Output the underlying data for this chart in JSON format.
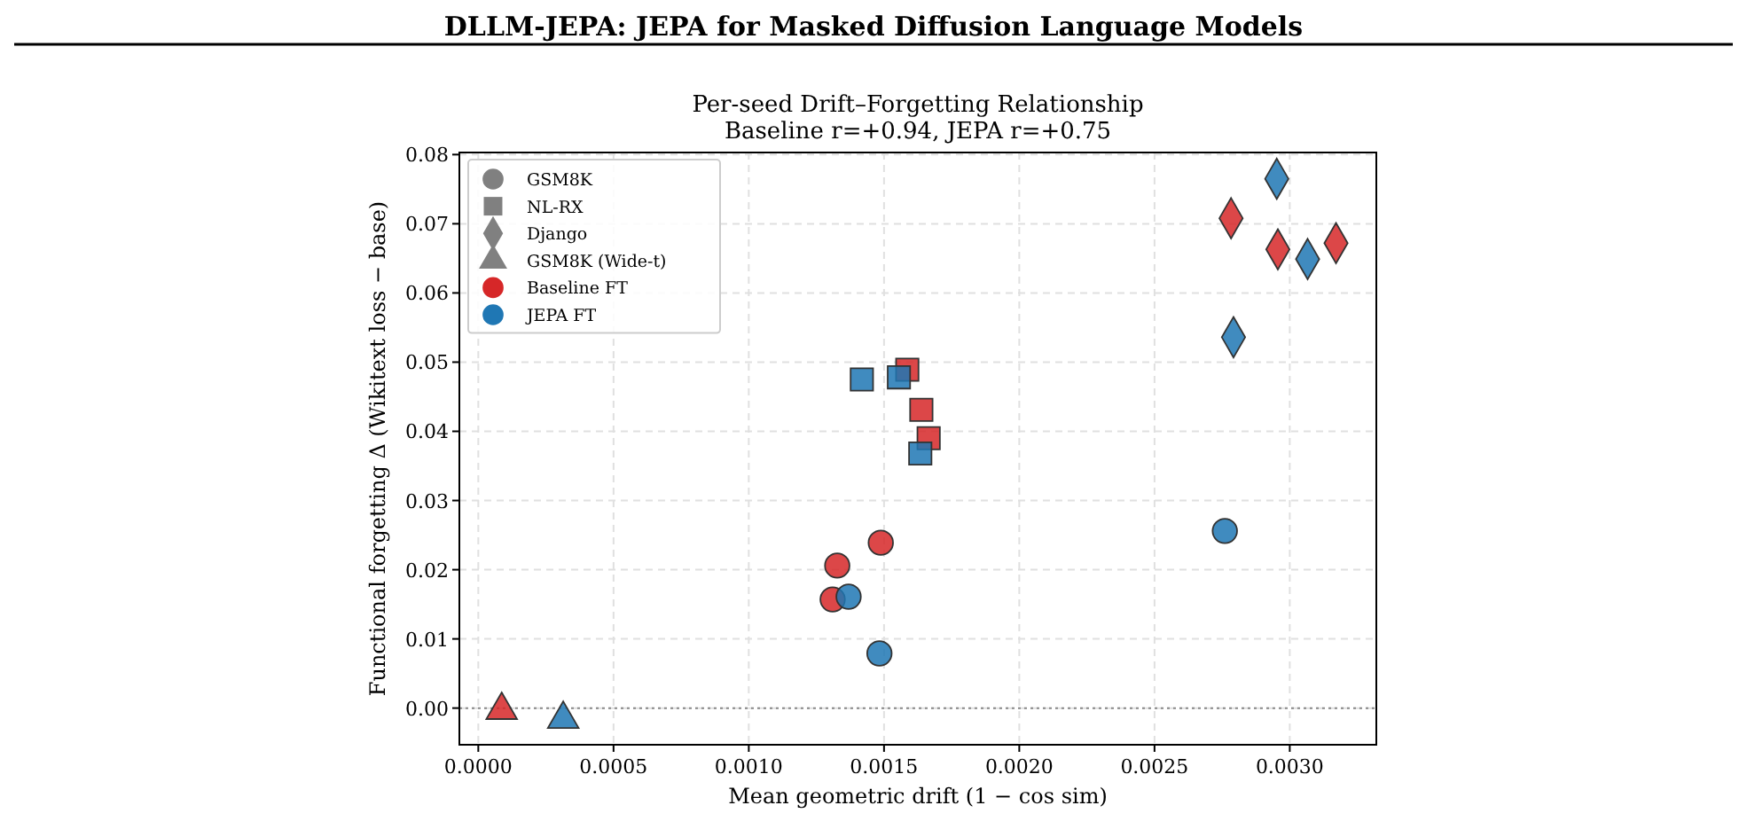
{
  "chart_data": {
    "type": "scatter",
    "title": "DLLM-JEPA: JEPA for Masked Diffusion Language Models",
    "subtitle": "Per-seed Drift–Forgetting Relationship\nBaseline r=+0.94, JEPA r=+0.75",
    "xlabel": "Mean geometric drift (1 − cos sim)",
    "ylabel": "Functional forgetting Δ (Wikitext loss − base)",
    "xlim": [
      -7e-05,
      0.00332
    ],
    "ylim": [
      -0.0053,
      0.0803
    ],
    "xticks": [
      {
        "value": 0,
        "label": "0.0000"
      },
      {
        "value": 0.0005,
        "label": "0.0005"
      },
      {
        "value": 0.001,
        "label": "0.0010"
      },
      {
        "value": 0.0015,
        "label": "0.0015"
      },
      {
        "value": 0.002,
        "label": "0.0020"
      },
      {
        "value": 0.0025,
        "label": "0.0025"
      },
      {
        "value": 0.003,
        "label": "0.0030"
      }
    ],
    "yticks": [
      {
        "value": 0,
        "label": "0.00"
      },
      {
        "value": 0.01,
        "label": "0.01"
      },
      {
        "value": 0.02,
        "label": "0.02"
      },
      {
        "value": 0.03,
        "label": "0.03"
      },
      {
        "value": 0.04,
        "label": "0.04"
      },
      {
        "value": 0.05,
        "label": "0.05"
      },
      {
        "value": 0.06,
        "label": "0.06"
      },
      {
        "value": 0.07,
        "label": "0.07"
      },
      {
        "value": 0.08,
        "label": "0.08"
      }
    ],
    "grid": true,
    "legend": "top left",
    "annotations": [
      "GSM8K",
      "NL-RX",
      "Django",
      "GSM8K (Wide-t)"
    ],
    "ref_lines": [
      {
        "axis": "y",
        "value": 0,
        "color": "#888888",
        "line_style": "dotted"
      }
    ],
    "series": [
      {
        "name": "Baseline FT",
        "marker": "circle",
        "color": "#d62728",
        "x": [
          0.00131,
          0.001327,
          0.001488
        ],
        "values": [
          0.0157,
          0.0206,
          0.0239
        ]
      },
      {
        "name": "JEPA FT",
        "marker": "circle",
        "color": "#1f77b4",
        "x": [
          0.001369,
          0.001483,
          0.00276
        ],
        "values": [
          0.0161,
          0.0079,
          0.0256
        ]
      },
      {
        "marker": "square",
        "color": "#d62728",
        "x": [
          0.001586,
          0.001638,
          0.001665
        ],
        "values": [
          0.0489,
          0.0431,
          0.039
        ]
      },
      {
        "marker": "square",
        "color": "#1f77b4",
        "x": [
          0.001418,
          0.001555,
          0.001634
        ],
        "values": [
          0.0475,
          0.0478,
          0.0368
        ]
      },
      {
        "marker": "diamond",
        "color": "#d62728",
        "x": [
          0.002783,
          0.002956,
          0.003171
        ],
        "values": [
          0.0708,
          0.0663,
          0.0672
        ]
      },
      {
        "marker": "diamond",
        "color": "#1f77b4",
        "x": [
          0.002952,
          0.003066,
          0.002792
        ],
        "values": [
          0.0765,
          0.0649,
          0.0536
        ]
      },
      {
        "marker": "triangle",
        "color": "#d62728",
        "x": [
          8.65e-05
        ],
        "values": [
          -0.0003
        ]
      },
      {
        "marker": "triangle",
        "color": "#1f77b4",
        "x": [
          0.000314
        ],
        "values": [
          -0.0016
        ]
      }
    ]
  }
}
